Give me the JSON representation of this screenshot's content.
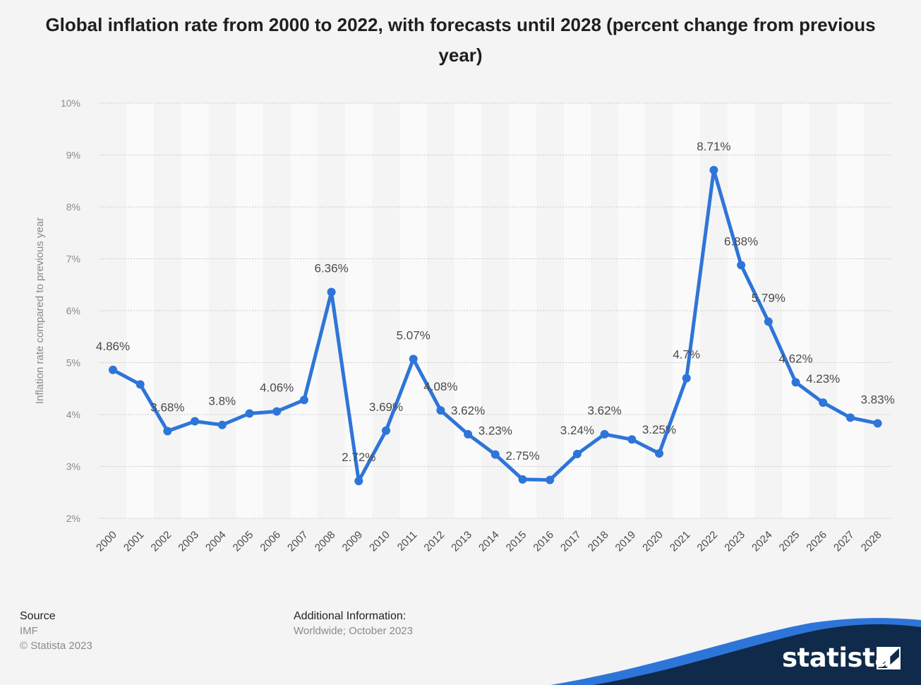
{
  "chart_data": {
    "type": "line",
    "title": "Global inflation rate from 2000 to 2022, with forecasts until 2028 (percent change from previous year)",
    "xlabel": "",
    "ylabel": "Inflation rate compared to previous year",
    "ylim": [
      2,
      10
    ],
    "y_ticks": [
      "2%",
      "3%",
      "4%",
      "5%",
      "6%",
      "7%",
      "8%",
      "9%",
      "10%"
    ],
    "grid": true,
    "categories": [
      "2000",
      "2001",
      "2002",
      "2003",
      "2004",
      "2005",
      "2006",
      "2007",
      "2008",
      "2009",
      "2010",
      "2011",
      "2012",
      "2013",
      "2014",
      "2015",
      "2016",
      "2017",
      "2018",
      "2019",
      "2020",
      "2021",
      "2022",
      "2023",
      "2024",
      "2025",
      "2026",
      "2027",
      "2028"
    ],
    "series": [
      {
        "values": [
          4.86,
          4.58,
          3.68,
          3.87,
          3.8,
          4.02,
          4.06,
          4.28,
          6.36,
          2.72,
          3.69,
          5.07,
          4.08,
          3.62,
          3.23,
          2.75,
          2.74,
          3.24,
          3.62,
          3.52,
          3.25,
          4.7,
          8.71,
          6.88,
          5.79,
          4.62,
          4.23,
          3.94,
          3.83
        ],
        "color": "#2e75d9"
      }
    ],
    "data_labels": [
      {
        "index": 0,
        "text": "4.86%"
      },
      {
        "index": 2,
        "text": "3.68%"
      },
      {
        "index": 4,
        "text": "3.8%"
      },
      {
        "index": 6,
        "text": "4.06%"
      },
      {
        "index": 8,
        "text": "6.36%"
      },
      {
        "index": 9,
        "text": "2.72%"
      },
      {
        "index": 10,
        "text": "3.69%"
      },
      {
        "index": 11,
        "text": "5.07%"
      },
      {
        "index": 12,
        "text": "4.08%"
      },
      {
        "index": 13,
        "text": "3.62%"
      },
      {
        "index": 14,
        "text": "3.23%"
      },
      {
        "index": 15,
        "text": "2.75%"
      },
      {
        "index": 17,
        "text": "3.24%"
      },
      {
        "index": 18,
        "text": "3.62%"
      },
      {
        "index": 20,
        "text": "3.25%"
      },
      {
        "index": 21,
        "text": "4.7%"
      },
      {
        "index": 22,
        "text": "8.71%"
      },
      {
        "index": 23,
        "text": "6.88%"
      },
      {
        "index": 24,
        "text": "5.79%"
      },
      {
        "index": 25,
        "text": "4.62%"
      },
      {
        "index": 26,
        "text": "4.23%"
      },
      {
        "index": 28,
        "text": "3.83%"
      }
    ]
  },
  "footer": {
    "source_heading": "Source",
    "source_name": "IMF",
    "copyright": "© Statista 2023",
    "info_heading": "Additional Information:",
    "info_text": "Worldwide; October 2023"
  },
  "brand": {
    "name": "statista",
    "colors": {
      "navy": "#0f2a4a",
      "blue": "#2e75d9"
    }
  }
}
